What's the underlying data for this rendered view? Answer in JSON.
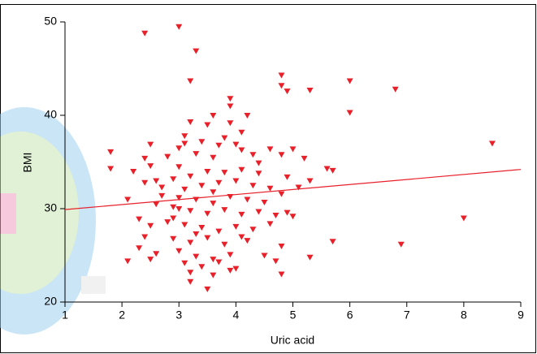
{
  "chart_data": {
    "type": "scatter",
    "xlabel": "Uric acid",
    "ylabel": "BMI",
    "color": "#e8202a",
    "line_color": "#e8202a",
    "xlim": [
      1,
      9
    ],
    "ylim": [
      20,
      50
    ],
    "xticks": [
      1,
      2,
      3,
      4,
      5,
      6,
      7,
      8,
      9
    ],
    "yticks": [
      20,
      30,
      40,
      50
    ],
    "x": [
      2.4,
      3.0,
      3.3,
      3.2,
      4.8,
      4.8,
      4.9,
      5.3,
      6.0,
      6.0,
      6.8,
      8.5,
      8.0,
      6.9,
      5.7,
      5.3,
      4.8,
      2.1,
      1.8,
      1.8,
      2.1,
      3.2,
      3.5,
      5.6,
      5.7,
      5.2,
      5.0,
      4.6,
      3.9,
      3.9,
      3.6,
      4.2,
      3.2,
      3.5,
      3.9,
      4.1,
      3.0,
      3.1,
      2.5,
      2.4,
      2.5,
      2.8,
      3.0,
      3.3,
      3.6,
      3.7,
      4.0,
      4.3,
      4.8,
      4.4,
      4.1,
      3.8,
      3.5,
      3.2,
      2.9,
      2.6,
      2.4,
      2.7,
      3.1,
      3.4,
      3.7,
      4.0,
      4.3,
      4.6,
      4.9,
      5.1,
      5.3,
      3.0,
      3.3,
      3.6,
      3.9,
      4.2,
      4.5,
      4.8,
      2.6,
      2.9,
      3.2,
      3.5,
      3.8,
      4.1,
      4.4,
      4.7,
      4.9,
      5.0,
      2.3,
      2.5,
      2.8,
      3.1,
      3.4,
      3.7,
      4.0,
      4.3,
      4.6,
      2.4,
      2.9,
      3.2,
      3.5,
      3.8,
      4.2,
      4.8,
      2.3,
      2.6,
      3.0,
      3.3,
      3.6,
      3.9,
      4.5,
      2.5,
      3.1,
      3.4,
      3.7,
      4.0,
      4.7,
      3.2,
      3.6,
      3.9,
      3.1,
      3.4,
      3.8,
      4.1,
      2.2,
      2.7,
      4.4,
      3.0,
      3.3,
      4.1,
      3.6,
      2.9
    ],
    "y": [
      48.8,
      49.5,
      46.9,
      43.7,
      44.3,
      43.2,
      42.6,
      42.7,
      43.7,
      40.3,
      42.8,
      37.0,
      29.0,
      26.2,
      26.5,
      24.8,
      23.0,
      31.0,
      36.1,
      34.3,
      24.4,
      22.2,
      21.4,
      34.3,
      34.1,
      35.4,
      36.4,
      36.4,
      41.8,
      41.0,
      40.0,
      40.0,
      39.3,
      39.0,
      39.2,
      38.2,
      36.5,
      37.0,
      36.9,
      35.4,
      34.6,
      35.6,
      34.5,
      35.9,
      35.5,
      36.8,
      36.9,
      35.8,
      35.8,
      34.9,
      34.2,
      33.9,
      34.0,
      33.5,
      33.2,
      33.0,
      32.8,
      32.3,
      32.1,
      32.5,
      32.8,
      33.0,
      32.5,
      32.2,
      33.4,
      32.3,
      33.0,
      31.2,
      31.0,
      30.6,
      31.3,
      31.0,
      30.7,
      31.6,
      30.5,
      30.2,
      29.8,
      29.5,
      29.9,
      29.4,
      29.7,
      29.3,
      29.6,
      29.2,
      28.9,
      28.2,
      28.6,
      28.3,
      28.0,
      27.6,
      28.1,
      27.8,
      28.4,
      27.0,
      26.8,
      26.4,
      26.9,
      26.2,
      26.6,
      26.0,
      25.8,
      25.2,
      25.5,
      24.9,
      24.6,
      25.1,
      25.0,
      24.6,
      24.2,
      23.8,
      24.3,
      23.6,
      24.4,
      23.2,
      22.9,
      23.4,
      37.8,
      37.2,
      37.6,
      36.3,
      34.0,
      31.4,
      33.8,
      30.0,
      27.3,
      27.0,
      31.8,
      29.0
    ],
    "fit_line": {
      "x": [
        1,
        9
      ],
      "y": [
        29.9,
        34.2
      ]
    }
  }
}
